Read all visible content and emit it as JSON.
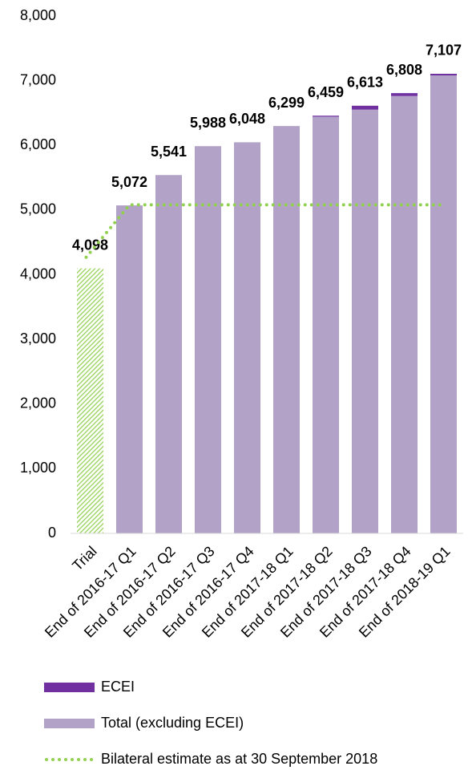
{
  "chart_data": {
    "type": "bar",
    "stacked": true,
    "categories": [
      "Trial",
      "End of 2016-17 Q1",
      "End of 2016-17 Q2",
      "End of 2016-17 Q3",
      "End of 2016-17 Q4",
      "End of 2017-18 Q1",
      "End of 2017-18 Q2",
      "End of 2017-18 Q3",
      "End of 2017-18 Q4",
      "End of 2018-19 Q1"
    ],
    "series": [
      {
        "name": "Total (excluding ECEI)",
        "color": "#b3a2c7",
        "hatch_color": "#92d050",
        "values": [
          4098,
          5072,
          5541,
          5988,
          6048,
          6299,
          6444,
          6553,
          6763,
          7082
        ]
      },
      {
        "name": "ECEI",
        "color": "#7030a0",
        "values": [
          null,
          0,
          0,
          0,
          0,
          0,
          15,
          60,
          45,
          25
        ]
      },
      {
        "name": "Bilateral estimate as at 30 September 2018",
        "type": "line",
        "color": "#92d050",
        "values": [
          4270,
          5080,
          5080,
          5080,
          5080,
          5080,
          5080,
          5080,
          5080,
          5080
        ]
      }
    ],
    "total_labels": [
      "4,098",
      "5,072",
      "5,541",
      "5,988",
      "6,048",
      "6,299",
      "6,459",
      "6,613",
      "6,808",
      "7,107"
    ],
    "ylim": [
      0,
      8000
    ],
    "yticks": [
      0,
      {
        "value": 1000,
        "label": "1,000"
      },
      {
        "value": 2000,
        "label": "2,000"
      },
      {
        "value": 3000,
        "label": "3,000"
      },
      {
        "value": 4000,
        "label": "4,000"
      },
      {
        "value": 5000,
        "label": "5,000"
      },
      {
        "value": 6000,
        "label": "6,000"
      },
      {
        "value": 7000,
        "label": "7,000"
      },
      {
        "value": 8000,
        "label": "8,000"
      }
    ],
    "grid": false
  }
}
